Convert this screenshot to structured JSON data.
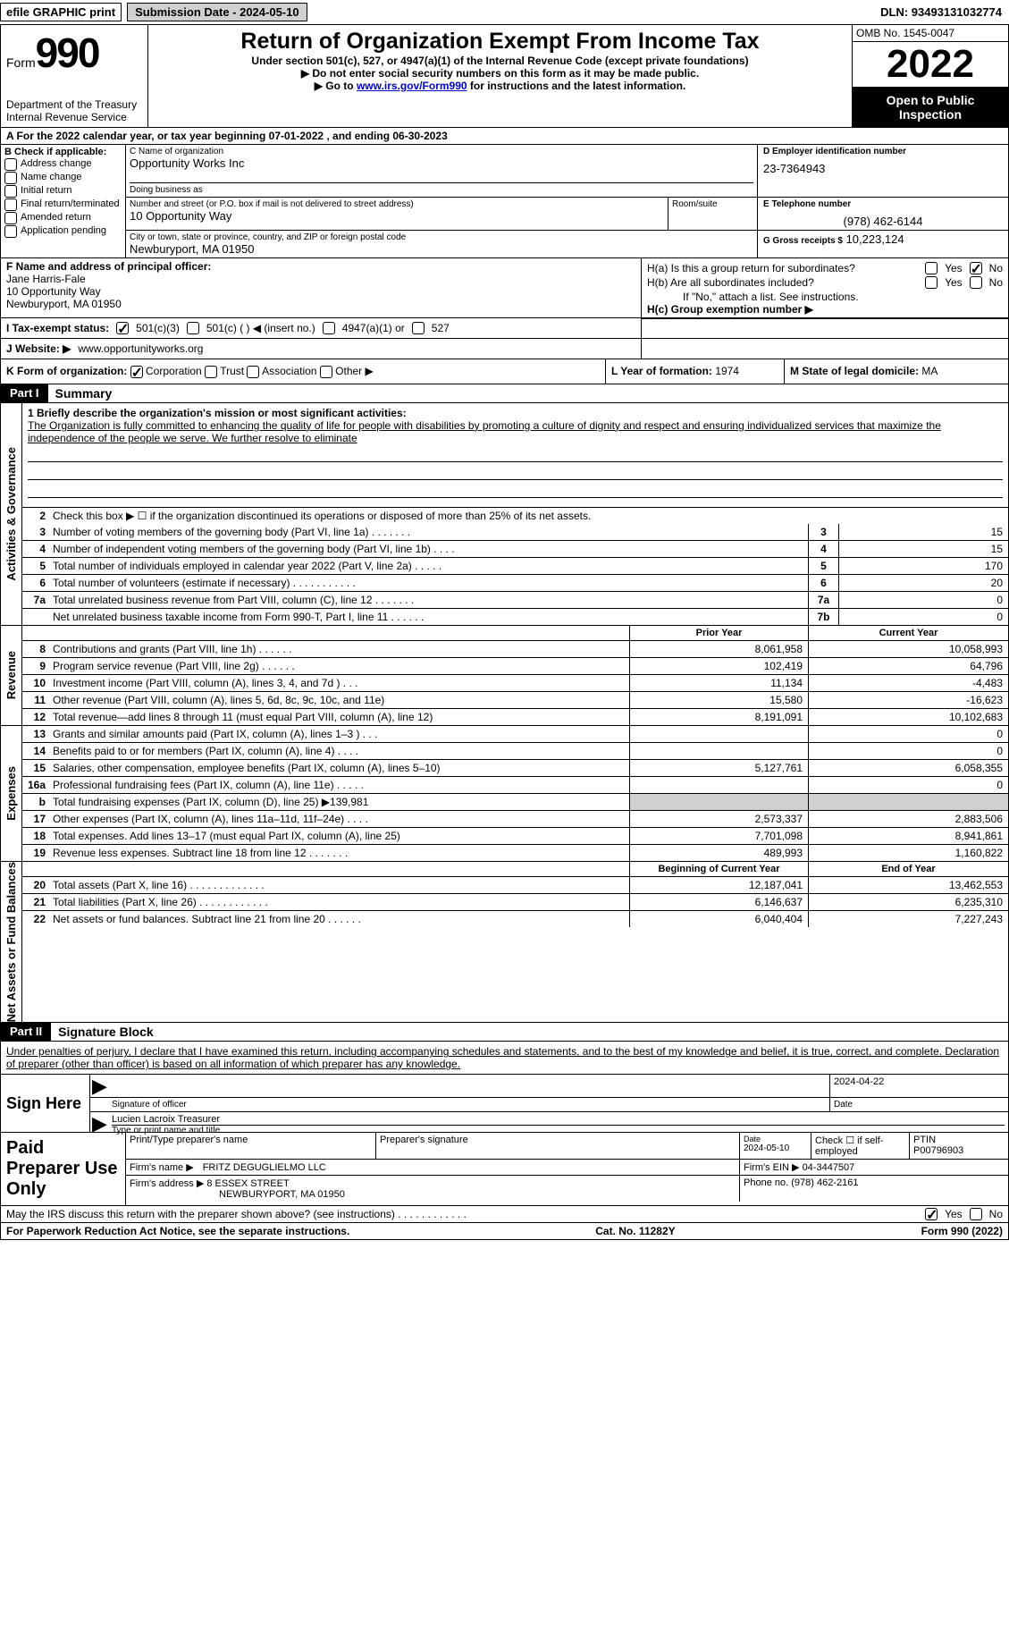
{
  "topbar": {
    "efile": "efile GRAPHIC print",
    "submission": "Submission Date - 2024-05-10",
    "dln": "DLN: 93493131032774"
  },
  "header": {
    "form_prefix": "Form",
    "form_num": "990",
    "dept": "Department of the Treasury\nInternal Revenue Service",
    "title": "Return of Organization Exempt From Income Tax",
    "sub1": "Under section 501(c), 527, or 4947(a)(1) of the Internal Revenue Code (except private foundations)",
    "sub2_prefix": "▶ Do not enter social security numbers on this form as it may be made public.",
    "sub3_prefix": "▶ Go to ",
    "sub3_link": "www.irs.gov/Form990",
    "sub3_suffix": " for instructions and the latest information.",
    "omb": "OMB No. 1545-0047",
    "year": "2022",
    "inspect": "Open to Public Inspection"
  },
  "row_a": "A  For the 2022 calendar year, or tax year beginning 07-01-2022    , and ending 06-30-2023",
  "section_b": {
    "label": "B Check if applicable:",
    "items": [
      "Address change",
      "Name change",
      "Initial return",
      "Final return/terminated",
      "Amended return",
      "Application pending"
    ]
  },
  "section_c": {
    "name_label": "C Name of organization",
    "name": "Opportunity Works Inc",
    "dba_label": "Doing business as",
    "dba": "",
    "addr_label": "Number and street (or P.O. box if mail is not delivered to street address)",
    "addr": "10 Opportunity Way",
    "room_label": "Room/suite",
    "city_label": "City or town, state or province, country, and ZIP or foreign postal code",
    "city": "Newburyport, MA  01950"
  },
  "section_d": {
    "label": "D Employer identification number",
    "value": "23-7364943"
  },
  "section_e": {
    "label": "E Telephone number",
    "value": "(978) 462-6144"
  },
  "section_g": {
    "label": "G Gross receipts $",
    "value": "10,223,124"
  },
  "section_f": {
    "label": "F Name and address of principal officer:",
    "name": "Jane Harris-Fale",
    "addr1": "10 Opportunity Way",
    "addr2": "Newburyport, MA  01950"
  },
  "section_h": {
    "ha": "H(a)  Is this a group return for subordinates?",
    "hb": "H(b)  Are all subordinates included?",
    "hb_note": "If \"No,\" attach a list. See instructions.",
    "hc": "H(c)  Group exemption number ▶"
  },
  "row_i": {
    "label": "I  Tax-exempt status:",
    "opts": [
      "501(c)(3)",
      "501(c) (   ) ◀ (insert no.)",
      "4947(a)(1) or",
      "527"
    ]
  },
  "row_j": {
    "label": "J  Website: ▶",
    "value": "www.opportunityworks.org"
  },
  "row_k": {
    "label": "K Form of organization:",
    "opts": [
      "Corporation",
      "Trust",
      "Association",
      "Other ▶"
    ]
  },
  "row_l": {
    "label": "L Year of formation:",
    "value": "1974"
  },
  "row_m": {
    "label": "M State of legal domicile:",
    "value": "MA"
  },
  "part1": {
    "header": "Part I",
    "title": "Summary"
  },
  "sidebar_labels": {
    "s1": "Activities & Governance",
    "s2": "Revenue",
    "s3": "Expenses",
    "s4": "Net Assets or Fund Balances"
  },
  "mission": {
    "label": "1  Briefly describe the organization's mission or most significant activities:",
    "text": "The Organization is fully committed to enhancing the quality of life for people with disabilities by promoting a culture of dignity and respect and ensuring individualized services that maximize the independence of the people we serve. We further resolve to eliminate"
  },
  "line2": "Check this box ▶ ☐  if the organization discontinued its operations or disposed of more than 25% of its net assets.",
  "summary": [
    {
      "n": "3",
      "t": "Number of voting members of the governing body (Part VI, line 1a)  .    .    .    .    .    .    .",
      "b": "3",
      "v": "15"
    },
    {
      "n": "4",
      "t": "Number of independent voting members of the governing body (Part VI, line 1b)  .    .    .    .",
      "b": "4",
      "v": "15"
    },
    {
      "n": "5",
      "t": "Total number of individuals employed in calendar year 2022 (Part V, line 2a)  .    .    .    .    .",
      "b": "5",
      "v": "170"
    },
    {
      "n": "6",
      "t": "Total number of volunteers (estimate if necessary)    .    .    .    .    .    .    .    .    .    .    .",
      "b": "6",
      "v": "20"
    },
    {
      "n": "7a",
      "t": "Total unrelated business revenue from Part VIII, column (C), line 12  .    .    .    .    .    .    .",
      "b": "7a",
      "v": "0"
    },
    {
      "n": "",
      "t": "Net unrelated business taxable income from Form 990-T, Part I, line 11  .    .    .    .    .    .",
      "b": "7b",
      "v": "0"
    }
  ],
  "rev_headers": {
    "prior": "Prior Year",
    "current": "Current Year"
  },
  "revenue": [
    {
      "n": "8",
      "t": "Contributions and grants (Part VIII, line 1h)    .    .    .    .    .    .",
      "p": "8,061,958",
      "c": "10,058,993"
    },
    {
      "n": "9",
      "t": "Program service revenue (Part VIII, line 2g)    .    .    .    .    .    .",
      "p": "102,419",
      "c": "64,796"
    },
    {
      "n": "10",
      "t": "Investment income (Part VIII, column (A), lines 3, 4, and 7d )    .    .    .",
      "p": "11,134",
      "c": "-4,483"
    },
    {
      "n": "11",
      "t": "Other revenue (Part VIII, column (A), lines 5, 6d, 8c, 9c, 10c, and 11e)",
      "p": "15,580",
      "c": "-16,623"
    },
    {
      "n": "12",
      "t": "Total revenue—add lines 8 through 11 (must equal Part VIII, column (A), line 12)",
      "p": "8,191,091",
      "c": "10,102,683"
    }
  ],
  "expenses": [
    {
      "n": "13",
      "t": "Grants and similar amounts paid (Part IX, column (A), lines 1–3 )  .    .    .",
      "p": "",
      "c": "0"
    },
    {
      "n": "14",
      "t": "Benefits paid to or for members (Part IX, column (A), line 4)    .    .    .    .",
      "p": "",
      "c": "0"
    },
    {
      "n": "15",
      "t": "Salaries, other compensation, employee benefits (Part IX, column (A), lines 5–10)",
      "p": "5,127,761",
      "c": "6,058,355"
    },
    {
      "n": "16a",
      "t": "Professional fundraising fees (Part IX, column (A), line 11e)  .    .    .    .    .",
      "p": "",
      "c": "0"
    },
    {
      "n": "b",
      "t": "Total fundraising expenses (Part IX, column (D), line 25) ▶139,981",
      "p": "shade",
      "c": "shade"
    },
    {
      "n": "17",
      "t": "Other expenses (Part IX, column (A), lines 11a–11d, 11f–24e)  .    .    .    .",
      "p": "2,573,337",
      "c": "2,883,506"
    },
    {
      "n": "18",
      "t": "Total expenses. Add lines 13–17 (must equal Part IX, column (A), line 25)",
      "p": "7,701,098",
      "c": "8,941,861"
    },
    {
      "n": "19",
      "t": "Revenue less expenses. Subtract line 18 from line 12  .    .    .    .    .    .    .",
      "p": "489,993",
      "c": "1,160,822"
    }
  ],
  "net_headers": {
    "prior": "Beginning of Current Year",
    "current": "End of Year"
  },
  "netassets": [
    {
      "n": "20",
      "t": "Total assets (Part X, line 16)  .    .    .    .    .    .    .    .    .    .    .    .    .",
      "p": "12,187,041",
      "c": "13,462,553"
    },
    {
      "n": "21",
      "t": "Total liabilities (Part X, line 26)  .    .    .    .    .    .    .    .    .    .    .    .",
      "p": "6,146,637",
      "c": "6,235,310"
    },
    {
      "n": "22",
      "t": "Net assets or fund balances. Subtract line 21 from line 20  .    .    .    .    .    .",
      "p": "6,040,404",
      "c": "7,227,243"
    }
  ],
  "part2": {
    "header": "Part II",
    "title": "Signature Block"
  },
  "perjury": "Under penalties of perjury, I declare that I have examined this return, including accompanying schedules and statements, and to the best of my knowledge and belief, it is true, correct, and complete. Declaration of preparer (other than officer) is based on all information of which preparer has any knowledge.",
  "sign": {
    "left": "Sign Here",
    "sig_label": "Signature of officer",
    "date_label": "Date",
    "date_val": "2024-04-22",
    "name": "Lucien Lacroix  Treasurer",
    "name_label": "Type or print name and title"
  },
  "preparer": {
    "left": "Paid Preparer Use Only",
    "print_label": "Print/Type preparer's name",
    "sig_label": "Preparer's signature",
    "date_label": "Date",
    "date_val": "2024-05-10",
    "check_label": "Check ☐ if self-employed",
    "ptin_label": "PTIN",
    "ptin": "P00796903",
    "firm_name_label": "Firm's name     ▶",
    "firm_name": "FRITZ DEGUGLIELMO LLC",
    "firm_ein_label": "Firm's EIN ▶",
    "firm_ein": "04-3447507",
    "firm_addr_label": "Firm's address ▶",
    "firm_addr1": "8 ESSEX STREET",
    "firm_addr2": "NEWBURYPORT, MA  01950",
    "phone_label": "Phone no.",
    "phone": "(978) 462-2161"
  },
  "discuss": "May the IRS discuss this return with the preparer shown above? (see instructions)    .    .    .    .    .    .    .    .    .    .    .    .",
  "footer": {
    "left": "For Paperwork Reduction Act Notice, see the separate instructions.",
    "mid": "Cat. No. 11282Y",
    "right": "Form 990 (2022)"
  }
}
